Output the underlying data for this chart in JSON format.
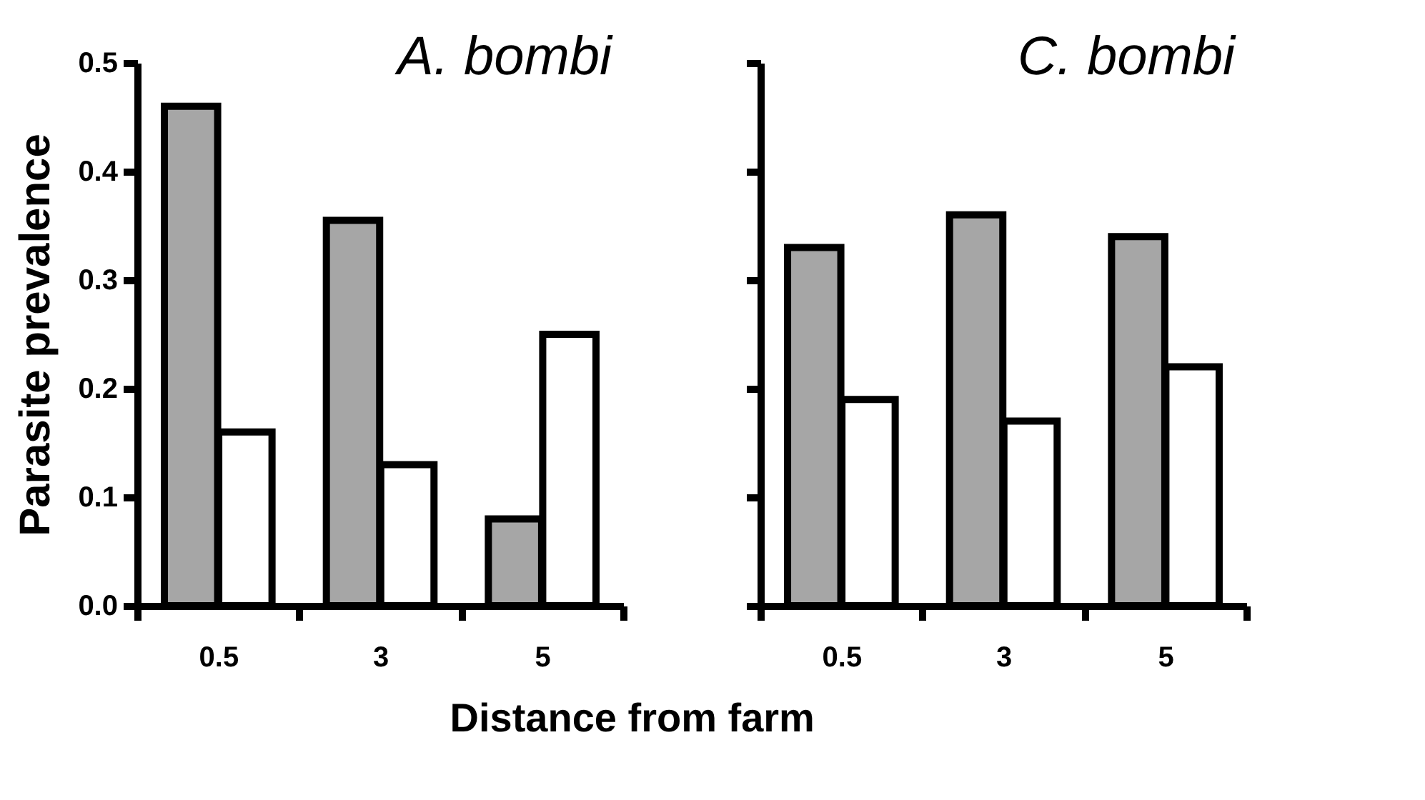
{
  "chart_data": [
    {
      "type": "bar",
      "ylabel": "Parasite prevalence",
      "xlabel": "Distance from farm",
      "annotations": [
        "A. bombi"
      ],
      "categories": [
        "0.5",
        "3",
        "5"
      ],
      "series": [
        {
          "color": "#a6a6a6",
          "values": [
            0.46,
            0.355,
            0.08
          ]
        },
        {
          "color": "#ffffff",
          "values": [
            0.16,
            0.13,
            0.25
          ]
        }
      ],
      "ylim": [
        0,
        0.5
      ],
      "yticks": [
        {
          "value": 0,
          "label": "0.0"
        },
        0.1,
        0.2,
        0.3,
        0.4,
        0.5
      ],
      "grid": false,
      "legend": false
    },
    {
      "type": "bar",
      "annotations": [
        "C. bombi"
      ],
      "categories": [
        "0.5",
        "3",
        "5"
      ],
      "series": [
        {
          "color": "#a6a6a6",
          "values": [
            0.33,
            0.36,
            0.34
          ]
        },
        {
          "color": "#ffffff",
          "values": [
            0.19,
            0.17,
            0.22
          ]
        }
      ],
      "ylim": [
        0,
        0.5
      ],
      "yticks": [
        {
          "value": 0,
          "label": null
        },
        {
          "value": 0.1,
          "label": null
        },
        {
          "value": 0.2,
          "label": null
        },
        {
          "value": 0.3,
          "label": null
        },
        {
          "value": 0.4,
          "label": null
        },
        {
          "value": 0.5,
          "label": null
        }
      ],
      "tick_labels": "x",
      "grid": false,
      "legend": false
    }
  ]
}
